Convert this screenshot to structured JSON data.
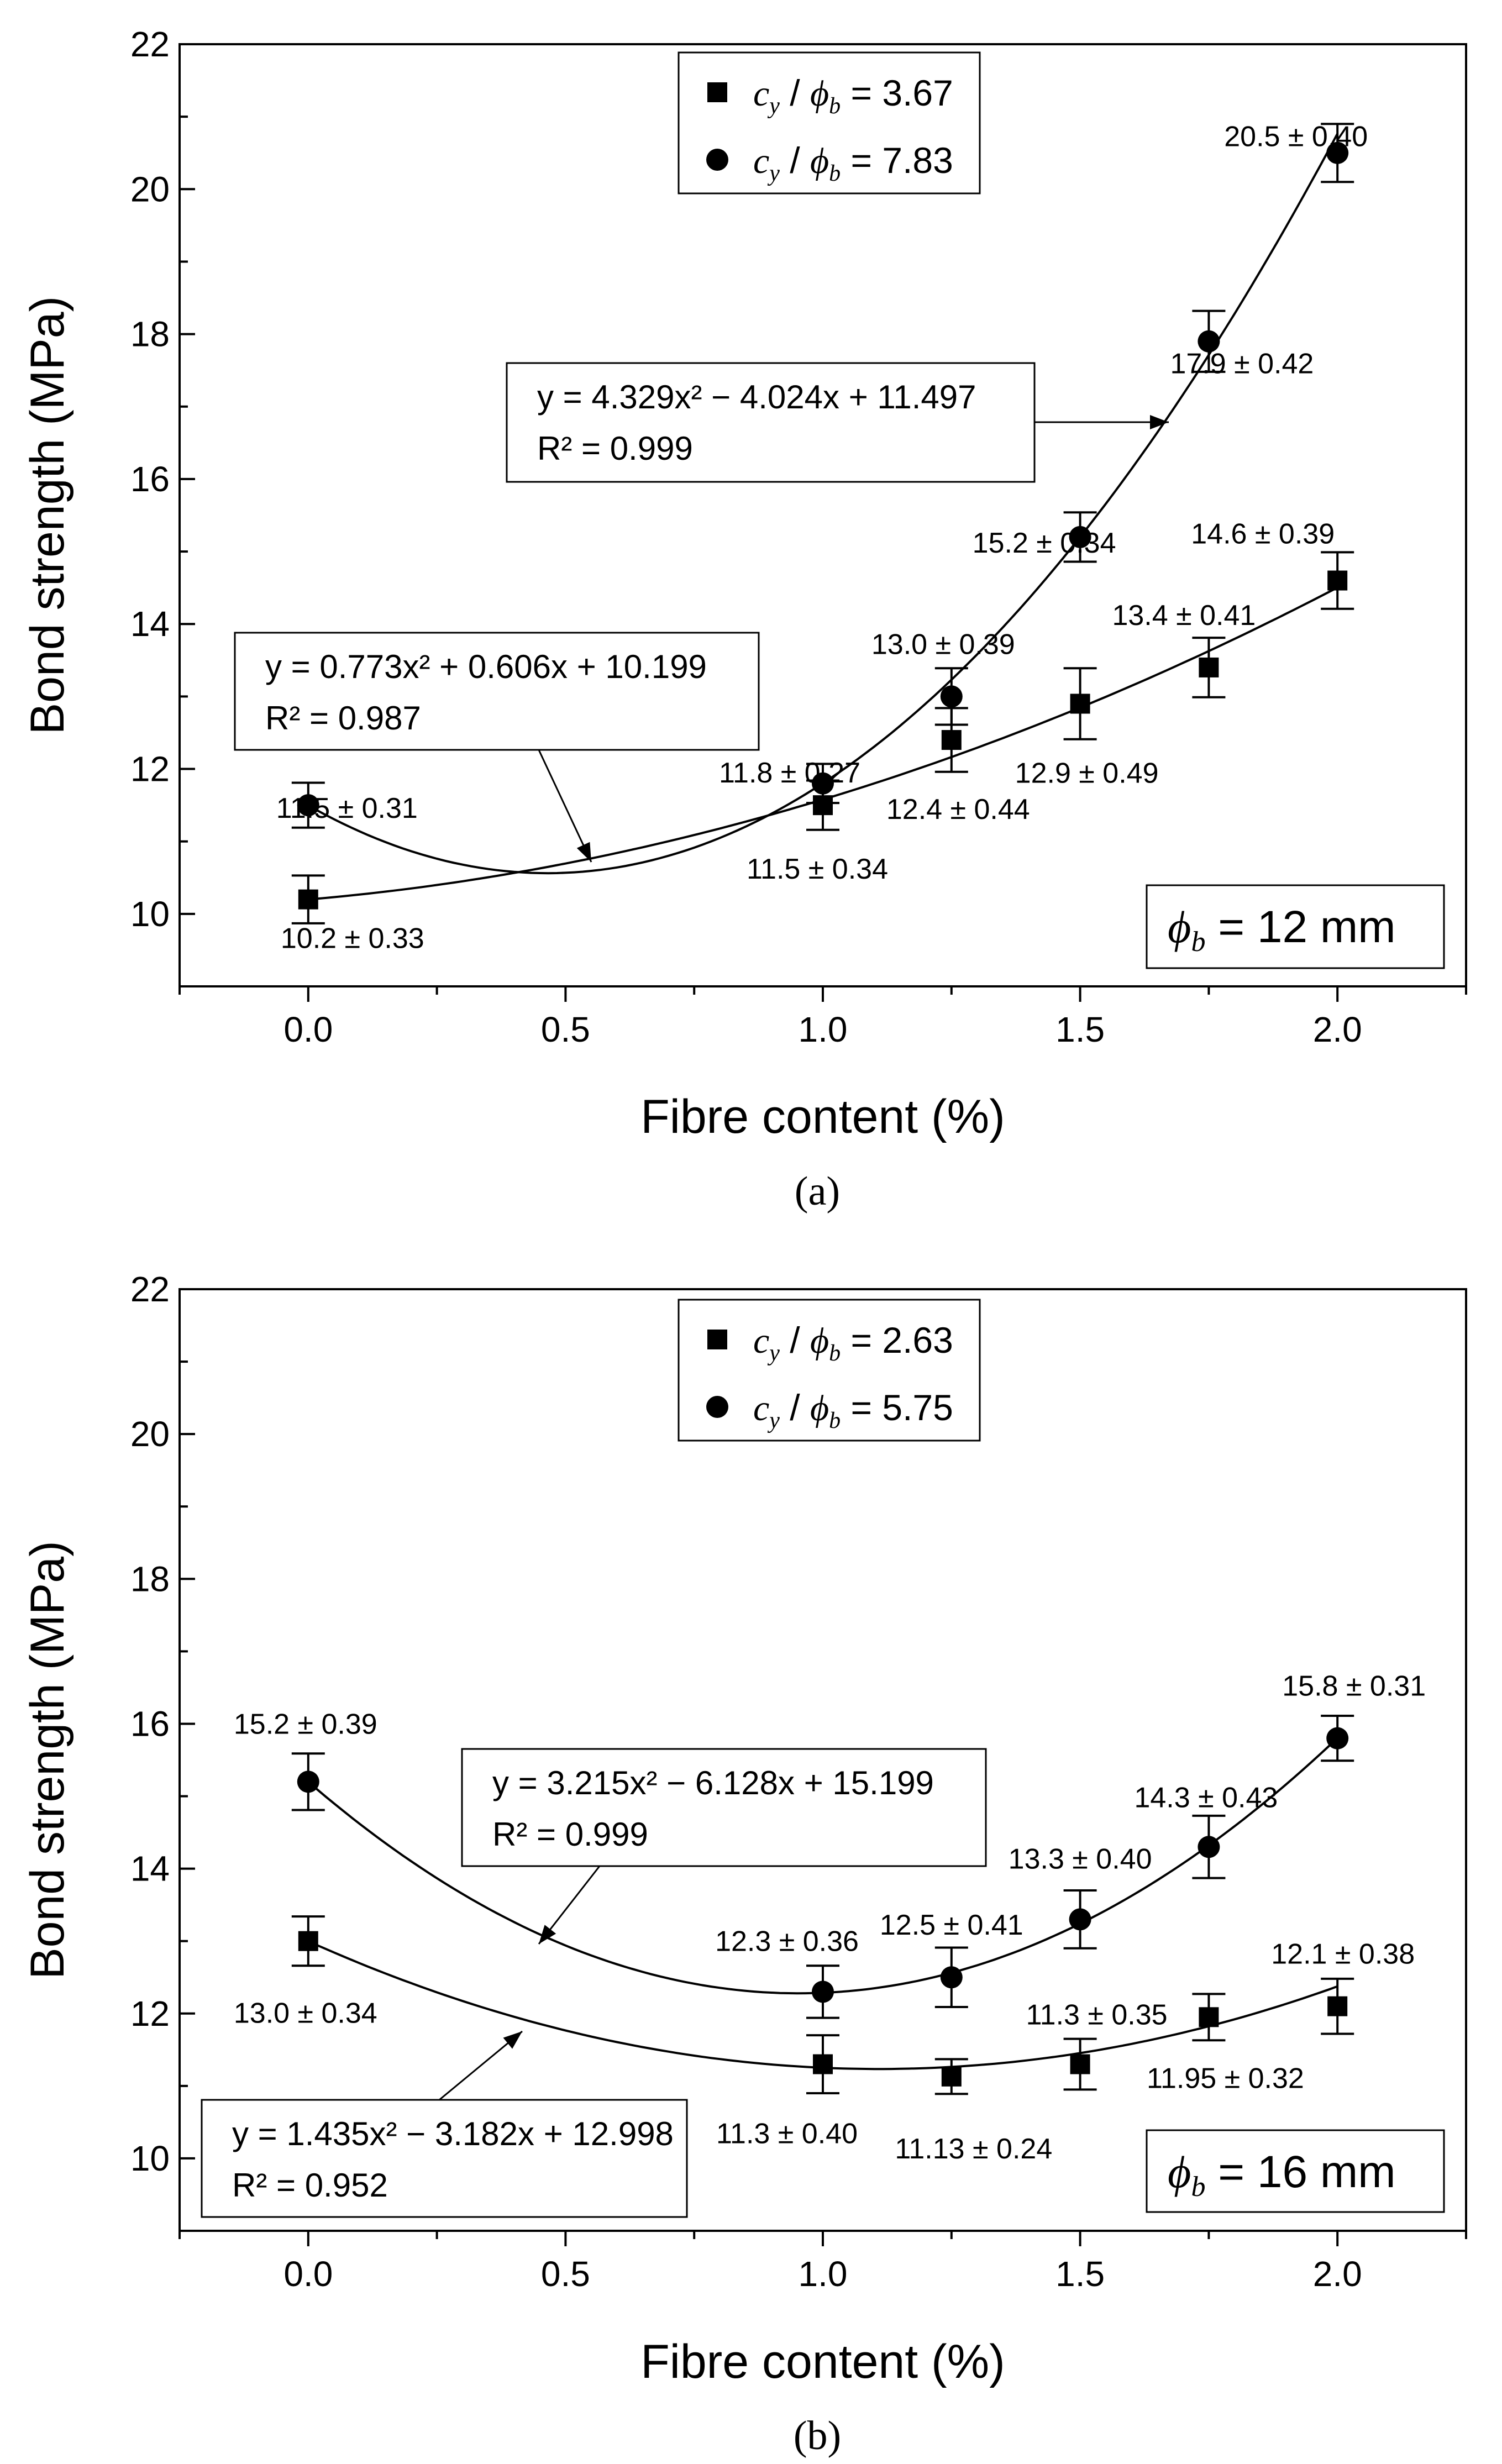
{
  "chart_data": [
    {
      "type": "scatter",
      "panel_label": "(a)",
      "xlabel": "Fibre content (%)",
      "ylabel": "Bond strength (MPa)",
      "xlim": [
        -0.25,
        2.25
      ],
      "ylim": [
        9,
        22
      ],
      "xticks": [
        "0.0",
        "0.5",
        "1.0",
        "1.5",
        "2.0"
      ],
      "yticks": [
        "10",
        "12",
        "14",
        "16",
        "18",
        "20",
        "22"
      ],
      "grid": false,
      "legend_position": "top-center",
      "series": [
        {
          "name": "c_y/ϕ_b = 3.67",
          "legend": {
            "c": "c",
            "sub_y": "y",
            "phi": "ϕ",
            "sub_b": "b",
            "rhs": "= 3.67"
          },
          "marker": "square",
          "x": [
            0.0,
            1.0,
            1.25,
            1.5,
            1.75,
            2.0
          ],
          "y": [
            10.2,
            11.5,
            12.4,
            12.9,
            13.4,
            14.6
          ],
          "err": [
            0.33,
            0.34,
            0.44,
            0.49,
            0.41,
            0.39
          ],
          "labels": [
            "10.2 ± 0.33",
            "11.5 ± 0.34",
            "12.4 ± 0.44",
            "12.9 ± 0.49",
            "13.4 ± 0.41",
            "14.6 ± 0.39"
          ],
          "fit": {
            "a": 0.773,
            "b": 0.606,
            "c": 10.199,
            "equation": "y = 0.773x² + 0.606x + 10.199",
            "r2": "R² = 0.987"
          }
        },
        {
          "name": "c_y/ϕ_b = 7.83",
          "legend": {
            "c": "c",
            "sub_y": "y",
            "phi": "ϕ",
            "sub_b": "b",
            "rhs": "= 7.83"
          },
          "marker": "circle",
          "x": [
            0.0,
            1.0,
            1.25,
            1.5,
            1.75,
            2.0
          ],
          "y": [
            11.5,
            11.8,
            13.0,
            15.2,
            17.9,
            20.5
          ],
          "err": [
            0.31,
            0.27,
            0.39,
            0.34,
            0.42,
            0.4
          ],
          "labels": [
            "11.5 ± 0.31",
            "11.8 ± 0.27",
            "13.0 ± 0.39",
            "15.2 ± 0.34",
            "17.9 ± 0.42",
            "20.5 ± 0.40"
          ],
          "fit": {
            "a": 4.329,
            "b": -4.024,
            "c": 11.497,
            "equation": "y = 4.329x² − 4.024x + 11.497",
            "r2": "R² = 0.999"
          }
        }
      ],
      "annotation": {
        "phi": "ϕ",
        "sub": "b",
        "rhs": "= 12 mm"
      }
    },
    {
      "type": "scatter",
      "panel_label": "(b)",
      "xlabel": "Fibre content (%)",
      "ylabel": "Bond strength (MPa)",
      "xlim": [
        -0.25,
        2.25
      ],
      "ylim": [
        9,
        22
      ],
      "xticks": [
        "0.0",
        "0.5",
        "1.0",
        "1.5",
        "2.0"
      ],
      "yticks": [
        "10",
        "12",
        "14",
        "16",
        "18",
        "20",
        "22"
      ],
      "grid": false,
      "legend_position": "top-center",
      "series": [
        {
          "name": "c_y/ϕ_b = 2.63",
          "legend": {
            "c": "c",
            "sub_y": "y",
            "phi": "ϕ",
            "sub_b": "b",
            "rhs": "= 2.63"
          },
          "marker": "square",
          "x": [
            0.0,
            1.0,
            1.25,
            1.5,
            1.75,
            2.0
          ],
          "y": [
            13.0,
            11.3,
            11.13,
            11.3,
            11.95,
            12.1
          ],
          "err": [
            0.34,
            0.4,
            0.24,
            0.35,
            0.32,
            0.38
          ],
          "labels": [
            "13.0 ± 0.34",
            "11.3 ± 0.40",
            "11.13 ± 0.24",
            "11.3 ± 0.35",
            "11.95 ± 0.32",
            "12.1 ± 0.38"
          ],
          "fit": {
            "a": 1.435,
            "b": -3.182,
            "c": 12.998,
            "equation": "y = 1.435x² − 3.182x + 12.998",
            "r2": "R² = 0.952"
          }
        },
        {
          "name": "c_y/ϕ_b = 5.75",
          "legend": {
            "c": "c",
            "sub_y": "y",
            "phi": "ϕ",
            "sub_b": "b",
            "rhs": "= 5.75"
          },
          "marker": "circle",
          "x": [
            0.0,
            1.0,
            1.25,
            1.5,
            1.75,
            2.0
          ],
          "y": [
            15.2,
            12.3,
            12.5,
            13.3,
            14.3,
            15.8
          ],
          "err": [
            0.39,
            0.36,
            0.41,
            0.4,
            0.43,
            0.31
          ],
          "labels": [
            "15.2 ± 0.39",
            "12.3 ± 0.36",
            "12.5 ± 0.41",
            "13.3 ± 0.40",
            "14.3 ± 0.43",
            "15.8 ± 0.31"
          ],
          "fit": {
            "a": 3.215,
            "b": -6.128,
            "c": 15.199,
            "equation": "y = 3.215x² − 6.128x + 15.199",
            "r2": "R² = 0.999"
          }
        }
      ],
      "annotation": {
        "phi": "ϕ",
        "sub": "b",
        "rhs": "= 16 mm"
      }
    }
  ]
}
